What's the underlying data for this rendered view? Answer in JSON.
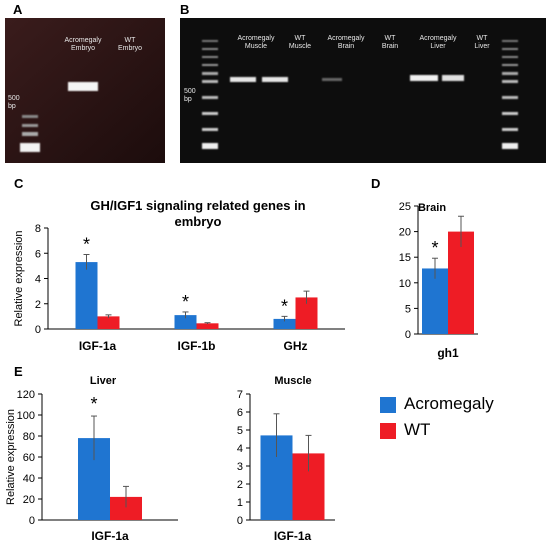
{
  "panels": {
    "A": {
      "letter": "A",
      "lanes": [
        [
          "Acromegaly",
          "Embryo"
        ],
        [
          "WT",
          "Embryo"
        ]
      ],
      "marker_text": [
        "500",
        "bp"
      ]
    },
    "B": {
      "letter": "B",
      "lanes": [
        [
          "Acromegaly",
          "Muscle"
        ],
        [
          "WT",
          "Muscle"
        ],
        [
          "Acromegaly",
          "Brain"
        ],
        [
          "WT",
          "Brain"
        ],
        [
          "Acromegaly",
          "Liver"
        ],
        [
          "WT",
          "Liver"
        ]
      ],
      "marker_text": [
        "500",
        "bp"
      ]
    }
  },
  "colors": {
    "acromegaly": "#1f75d1",
    "wt": "#ee1c25",
    "gel_bg": "#0d0d0d",
    "gel_a_bg": "#2a1414"
  },
  "legend": {
    "items": [
      "Acromegaly",
      "WT"
    ]
  },
  "chart_data": [
    {
      "panel": "C",
      "type": "bar",
      "title": [
        "GH/IGF1 signaling related genes in",
        "embryo"
      ],
      "ylabel": "Relative expression",
      "categories": [
        "IGF-1a",
        "IGF-1b",
        "GHz"
      ],
      "series": [
        {
          "name": "Acromegaly",
          "values": [
            5.3,
            1.1,
            0.8
          ],
          "errors": [
            0.6,
            0.25,
            0.2
          ]
        },
        {
          "name": "WT",
          "values": [
            1.0,
            0.45,
            2.5
          ],
          "errors": [
            0.12,
            0.05,
            0.5
          ]
        }
      ],
      "significance": [
        "*",
        "*",
        "*"
      ],
      "ylim": [
        0,
        8
      ],
      "yticks": [
        0,
        2,
        4,
        6,
        8
      ]
    },
    {
      "panel": "D",
      "type": "bar",
      "title": [
        "Brain"
      ],
      "ylabel": "",
      "categories": [
        "gh1"
      ],
      "series": [
        {
          "name": "Acromegaly",
          "values": [
            12.8
          ],
          "errors": [
            2.0
          ]
        },
        {
          "name": "WT",
          "values": [
            20.0
          ],
          "errors": [
            3.0
          ]
        }
      ],
      "significance": [
        "*"
      ],
      "ylim": [
        0,
        25
      ],
      "yticks": [
        0,
        5,
        10,
        15,
        20,
        25
      ]
    },
    {
      "panel": "E",
      "type": "bar",
      "title": [
        "Liver"
      ],
      "ylabel": "Relative expression",
      "categories": [
        "IGF-1a"
      ],
      "series": [
        {
          "name": "Acromegaly",
          "values": [
            78
          ],
          "errors": [
            21
          ]
        },
        {
          "name": "WT",
          "values": [
            22
          ],
          "errors": [
            10
          ]
        }
      ],
      "significance": [
        "*"
      ],
      "ylim": [
        0,
        120
      ],
      "yticks": [
        0,
        20,
        40,
        60,
        80,
        100,
        120
      ]
    },
    {
      "panel": "E2",
      "type": "bar",
      "title": [
        "Muscle"
      ],
      "ylabel": "",
      "categories": [
        "IGF-1a"
      ],
      "series": [
        {
          "name": "Acromegaly",
          "values": [
            4.7
          ],
          "errors": [
            1.2
          ]
        },
        {
          "name": "WT",
          "values": [
            3.7
          ],
          "errors": [
            1.0
          ]
        }
      ],
      "significance": [
        ""
      ],
      "ylim": [
        0,
        7
      ],
      "yticks": [
        0,
        1,
        2,
        3,
        4,
        5,
        6,
        7
      ]
    }
  ],
  "panel_letters": {
    "C": "C",
    "D": "D",
    "E": "E"
  }
}
